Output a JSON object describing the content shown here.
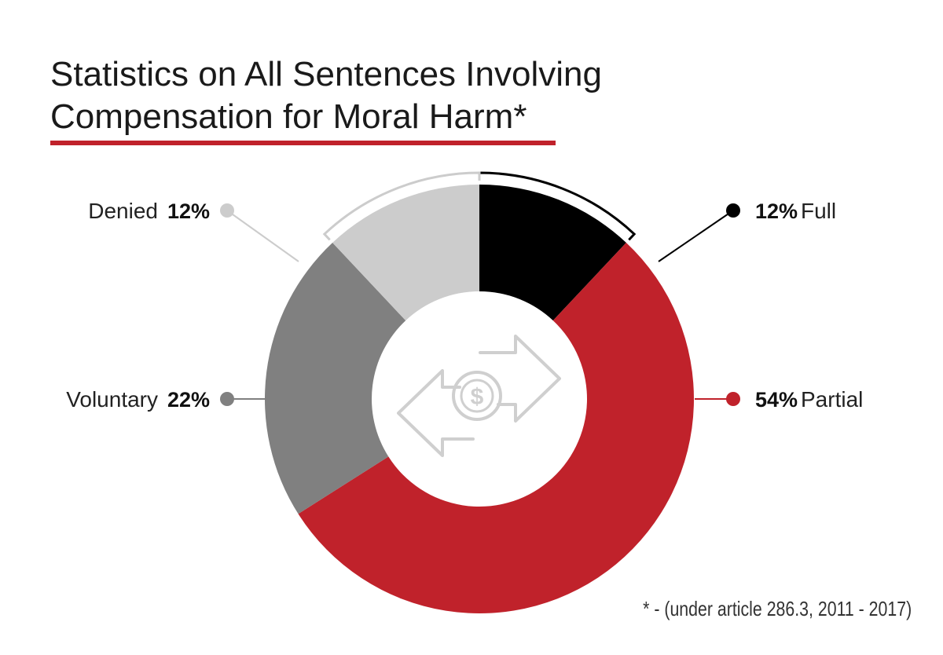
{
  "header": {
    "title_line1": "Statistics on All Sentences Involving",
    "title_line2": "Compensation for Moral Harm*"
  },
  "footnote": "* - (under article 286.3,  2011 - 2017)",
  "center_icon": "money-exchange-icon",
  "colors": {
    "accent": "#c0222b",
    "full": "#000000",
    "partial": "#c0222b",
    "voluntary": "#808080",
    "denied": "#cccccc"
  },
  "chart_data": {
    "type": "pie",
    "style": "donut",
    "title": "Statistics on All Sentences Involving Compensation for Moral Harm*",
    "slices": [
      {
        "label": "Full",
        "value": 12,
        "value_label": "12%",
        "color": "#000000"
      },
      {
        "label": "Partial",
        "value": 54,
        "value_label": "54%",
        "color": "#c0222b"
      },
      {
        "label": "Voluntary",
        "value": 22,
        "value_label": "22%",
        "color": "#808080"
      },
      {
        "label": "Denied",
        "value": 12,
        "value_label": "12%",
        "color": "#cccccc"
      }
    ]
  }
}
